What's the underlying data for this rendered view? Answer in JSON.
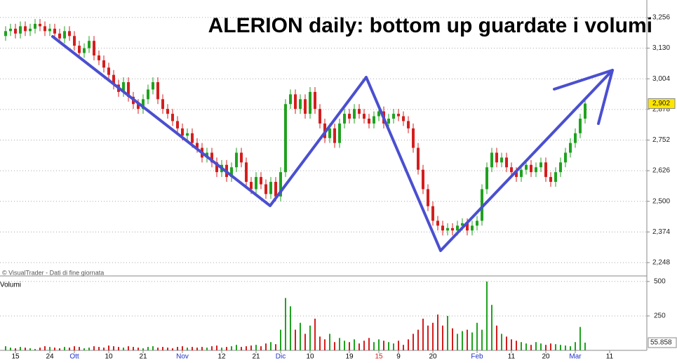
{
  "chart_data": {
    "type": "candlestick",
    "title": "ALERION daily: bottom up guardate i volumi",
    "copyright": "© VisualTrader - Dati di fine giornata",
    "up_color": "#1fa21f",
    "down_color": "#d41e1e",
    "categories": [
      null,
      null,
      "15",
      null,
      null,
      null,
      null,
      null,
      null,
      "24",
      null,
      null,
      null,
      null,
      "Ott",
      null,
      null,
      null,
      null,
      null,
      null,
      "10",
      null,
      null,
      null,
      null,
      null,
      null,
      "21",
      null,
      null,
      null,
      null,
      null,
      null,
      null,
      "Nov",
      null,
      null,
      null,
      null,
      null,
      null,
      null,
      "12",
      null,
      null,
      null,
      null,
      null,
      null,
      "21",
      null,
      null,
      null,
      null,
      "Dic",
      null,
      null,
      null,
      null,
      null,
      "10",
      null,
      null,
      null,
      null,
      null,
      null,
      null,
      "19",
      null,
      null,
      null,
      null,
      null,
      "15",
      null,
      null,
      null,
      "9",
      null,
      null,
      null,
      null,
      null,
      null,
      "20",
      null,
      null,
      null,
      null,
      null,
      null,
      null,
      null,
      "Feb",
      null,
      null,
      null,
      null,
      null,
      null,
      "11",
      null,
      null,
      null,
      null,
      null,
      null,
      "20",
      null,
      null,
      null,
      null,
      null,
      "Mar",
      null,
      null,
      null,
      null,
      null,
      null,
      "11"
    ],
    "x_label_colors": [
      "#000",
      "#000",
      "#1e32c8",
      "#000",
      "#000",
      "#1e32c8",
      "#000",
      "#000",
      "#1e32c8",
      "#000",
      "#000",
      "#d41e1e",
      "#000",
      "#000",
      "#1e32c8",
      "#000",
      "#000",
      "#1e32c8",
      "#000"
    ],
    "open": [
      3.18,
      3.2,
      3.21,
      3.19,
      3.22,
      3.2,
      3.21,
      3.23,
      3.22,
      3.2,
      3.21,
      3.19,
      3.17,
      3.2,
      3.18,
      3.14,
      3.11,
      3.13,
      3.16,
      3.1,
      3.08,
      3.05,
      3.02,
      2.98,
      2.95,
      2.99,
      2.93,
      2.9,
      2.88,
      2.92,
      2.96,
      2.99,
      2.92,
      2.88,
      2.86,
      2.83,
      2.8,
      2.77,
      2.78,
      2.74,
      2.72,
      2.68,
      2.7,
      2.66,
      2.62,
      2.65,
      2.6,
      2.64,
      2.7,
      2.66,
      2.58,
      2.55,
      2.6,
      2.57,
      2.53,
      2.58,
      2.52,
      2.62,
      2.9,
      2.94,
      2.88,
      2.92,
      2.86,
      2.95,
      2.88,
      2.82,
      2.76,
      2.8,
      2.74,
      2.82,
      2.86,
      2.84,
      2.88,
      2.86,
      2.84,
      2.82,
      2.85,
      2.87,
      2.82,
      2.84,
      2.86,
      2.85,
      2.83,
      2.8,
      2.72,
      2.63,
      2.55,
      2.48,
      2.42,
      2.4,
      2.38,
      2.39,
      2.38,
      2.4,
      2.41,
      2.38,
      2.4,
      2.42,
      2.55,
      2.64,
      2.7,
      2.66,
      2.68,
      2.64,
      2.62,
      2.6,
      2.63,
      2.65,
      2.62,
      2.64,
      2.66,
      2.6,
      2.58,
      2.62,
      2.66,
      2.7,
      2.74,
      2.78,
      2.84,
      null,
      null,
      null,
      null,
      null
    ],
    "high": [
      3.22,
      3.23,
      3.23,
      3.24,
      3.24,
      3.23,
      3.25,
      3.25,
      3.24,
      3.23,
      3.23,
      3.21,
      3.22,
      3.22,
      3.2,
      3.16,
      3.15,
      3.18,
      3.18,
      3.12,
      3.1,
      3.07,
      3.04,
      3.0,
      3.01,
      3.01,
      2.95,
      2.92,
      2.94,
      2.98,
      3.01,
      3.01,
      2.94,
      2.9,
      2.88,
      2.85,
      2.82,
      2.8,
      2.8,
      2.76,
      2.74,
      2.72,
      2.72,
      2.68,
      2.67,
      2.67,
      2.66,
      2.72,
      2.72,
      2.68,
      2.6,
      2.62,
      2.62,
      2.59,
      2.6,
      2.6,
      2.64,
      2.92,
      2.96,
      2.96,
      2.94,
      2.94,
      2.97,
      2.97,
      2.9,
      2.84,
      2.82,
      2.82,
      2.84,
      2.88,
      2.88,
      2.9,
      2.9,
      2.88,
      2.86,
      2.87,
      2.89,
      2.89,
      2.86,
      2.88,
      2.88,
      2.87,
      2.85,
      2.82,
      2.74,
      2.65,
      2.57,
      2.5,
      2.44,
      2.42,
      2.41,
      2.41,
      2.42,
      2.43,
      2.43,
      2.42,
      2.44,
      2.57,
      2.66,
      2.72,
      2.72,
      2.7,
      2.7,
      2.66,
      2.64,
      2.65,
      2.67,
      2.67,
      2.66,
      2.68,
      2.68,
      2.62,
      2.64,
      2.68,
      2.72,
      2.76,
      2.8,
      2.86,
      2.92,
      null,
      null,
      null,
      null,
      null
    ],
    "low": [
      3.16,
      3.18,
      3.17,
      3.17,
      3.18,
      3.18,
      3.19,
      3.2,
      3.18,
      3.18,
      3.17,
      3.15,
      3.15,
      3.16,
      3.12,
      3.09,
      3.09,
      3.11,
      3.08,
      3.06,
      3.03,
      3.0,
      2.96,
      2.93,
      2.93,
      2.91,
      2.88,
      2.86,
      2.86,
      2.9,
      2.94,
      2.9,
      2.86,
      2.84,
      2.81,
      2.78,
      2.75,
      2.75,
      2.72,
      2.7,
      2.66,
      2.66,
      2.64,
      2.6,
      2.6,
      2.58,
      2.58,
      2.62,
      2.64,
      2.56,
      2.53,
      2.53,
      2.55,
      2.51,
      2.51,
      2.5,
      2.5,
      2.6,
      2.88,
      2.86,
      2.86,
      2.84,
      2.84,
      2.86,
      2.8,
      2.74,
      2.74,
      2.72,
      2.72,
      2.8,
      2.82,
      2.82,
      2.84,
      2.82,
      2.8,
      2.8,
      2.83,
      2.8,
      2.8,
      2.82,
      2.83,
      2.81,
      2.78,
      2.7,
      2.61,
      2.53,
      2.46,
      2.4,
      2.38,
      2.36,
      2.36,
      2.36,
      2.36,
      2.38,
      2.36,
      2.36,
      2.38,
      2.4,
      2.53,
      2.62,
      2.64,
      2.64,
      2.62,
      2.6,
      2.58,
      2.58,
      2.61,
      2.6,
      2.6,
      2.62,
      2.58,
      2.56,
      2.56,
      2.6,
      2.64,
      2.68,
      2.72,
      2.76,
      2.82,
      null,
      null,
      null,
      null,
      null
    ],
    "close": [
      3.2,
      3.21,
      3.19,
      3.22,
      3.2,
      3.21,
      3.23,
      3.22,
      3.2,
      3.21,
      3.19,
      3.17,
      3.2,
      3.18,
      3.14,
      3.11,
      3.13,
      3.16,
      3.1,
      3.08,
      3.05,
      3.02,
      2.98,
      2.95,
      2.99,
      2.93,
      2.9,
      2.88,
      2.92,
      2.96,
      2.99,
      2.92,
      2.88,
      2.86,
      2.83,
      2.8,
      2.77,
      2.78,
      2.74,
      2.72,
      2.68,
      2.7,
      2.66,
      2.62,
      2.65,
      2.6,
      2.64,
      2.7,
      2.66,
      2.58,
      2.55,
      2.6,
      2.57,
      2.53,
      2.58,
      2.52,
      2.62,
      2.9,
      2.94,
      2.88,
      2.92,
      2.86,
      2.95,
      2.88,
      2.82,
      2.76,
      2.8,
      2.74,
      2.82,
      2.86,
      2.84,
      2.88,
      2.86,
      2.84,
      2.82,
      2.85,
      2.87,
      2.82,
      2.84,
      2.86,
      2.85,
      2.83,
      2.8,
      2.72,
      2.63,
      2.55,
      2.48,
      2.42,
      2.4,
      2.38,
      2.39,
      2.38,
      2.4,
      2.41,
      2.38,
      2.4,
      2.42,
      2.55,
      2.64,
      2.7,
      2.66,
      2.68,
      2.64,
      2.62,
      2.6,
      2.63,
      2.65,
      2.62,
      2.64,
      2.66,
      2.6,
      2.58,
      2.62,
      2.66,
      2.7,
      2.74,
      2.78,
      2.84,
      2.902,
      null,
      null,
      null,
      null,
      null
    ],
    "last_close_label": "2,902",
    "ylim": [
      2.196,
      3.328
    ],
    "yticks": [
      {
        "value": 3.256,
        "label": "3,256"
      },
      {
        "value": 3.13,
        "label": "3,130"
      },
      {
        "value": 3.004,
        "label": "3,004"
      },
      {
        "value": 2.878,
        "label": "2,878"
      },
      {
        "value": 2.752,
        "label": "2,752"
      },
      {
        "value": 2.626,
        "label": "2,626"
      },
      {
        "value": 2.5,
        "label": "2,500"
      },
      {
        "value": 2.374,
        "label": "2,374"
      },
      {
        "value": 2.248,
        "label": "2,248"
      }
    ],
    "grid": true,
    "volume": {
      "name": "Volumi",
      "values": [
        30,
        20,
        15,
        25,
        20,
        15,
        10,
        20,
        30,
        25,
        20,
        15,
        25,
        20,
        30,
        25,
        15,
        20,
        30,
        25,
        20,
        35,
        30,
        25,
        20,
        30,
        25,
        20,
        15,
        25,
        30,
        20,
        25,
        20,
        15,
        25,
        30,
        20,
        25,
        20,
        25,
        20,
        30,
        35,
        20,
        25,
        30,
        40,
        25,
        30,
        35,
        40,
        30,
        50,
        60,
        45,
        150,
        380,
        320,
        150,
        200,
        120,
        180,
        230,
        100,
        80,
        120,
        60,
        90,
        70,
        60,
        80,
        50,
        70,
        90,
        60,
        80,
        70,
        60,
        50,
        70,
        40,
        80,
        120,
        150,
        230,
        180,
        200,
        260,
        180,
        250,
        160,
        120,
        140,
        150,
        130,
        200,
        150,
        500,
        330,
        180,
        120,
        100,
        80,
        70,
        60,
        50,
        40,
        60,
        50,
        40,
        50,
        45,
        40,
        35,
        30,
        60,
        170,
        55.858,
        null,
        null,
        null,
        null,
        null
      ],
      "last_value_label": "55.858",
      "ylim": [
        0,
        530
      ],
      "yticks": [
        250,
        500
      ]
    }
  }
}
